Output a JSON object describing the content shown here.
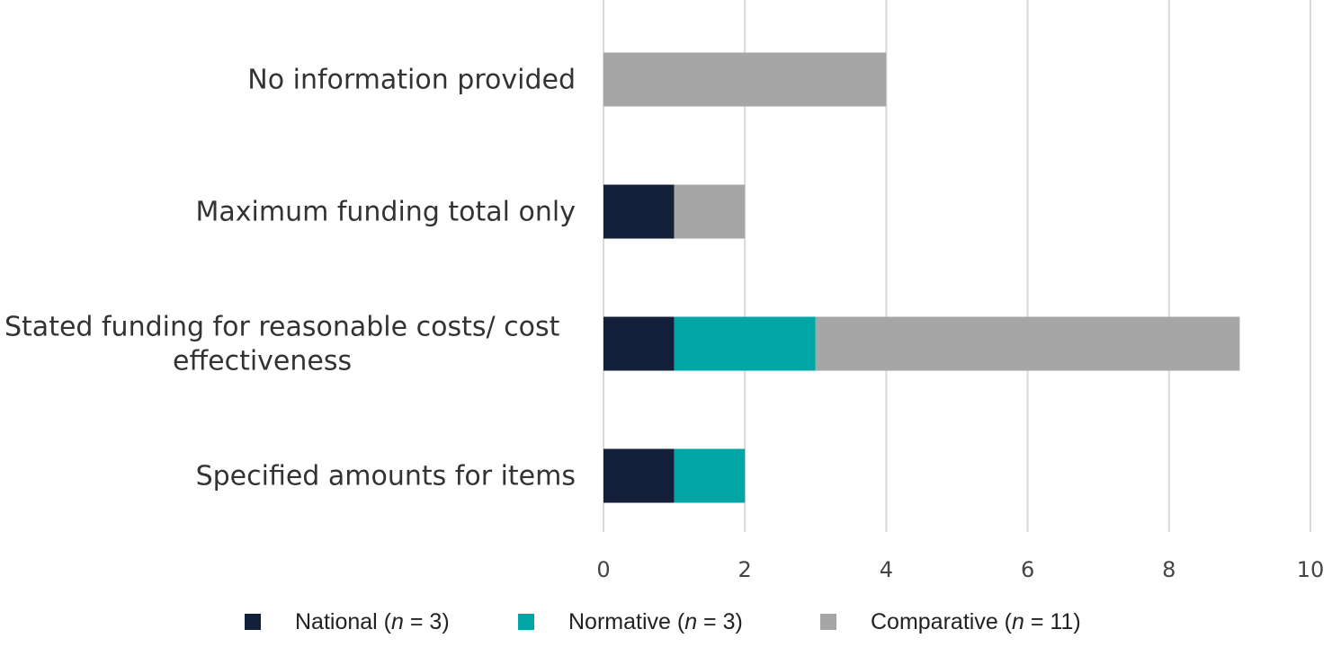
{
  "chart_data": {
    "type": "bar",
    "orientation": "horizontal",
    "stacked": true,
    "title": "",
    "xlabel": "",
    "ylabel": "",
    "xlim": [
      0,
      10
    ],
    "x_ticks": [
      0,
      2,
      4,
      6,
      8,
      10
    ],
    "grid": "vertical",
    "legend_position": "bottom",
    "categories": [
      "No information provided",
      "Maximum funding total only",
      "Stated funding for reasonable costs/ cost effectiveness",
      "Specified amounts for items"
    ],
    "category_label_lines": [
      [
        "No information provided"
      ],
      [
        "Maximum funding total only"
      ],
      [
        "Stated funding for reasonable costs/ cost",
        "effectiveness"
      ],
      [
        "Specified amounts for items"
      ]
    ],
    "series": [
      {
        "name": "National",
        "n": "3",
        "color": "#14203a",
        "values": [
          0,
          1,
          1,
          1
        ]
      },
      {
        "name": "Normative",
        "n": "3",
        "color": "#00a6a6",
        "values": [
          0,
          0,
          2,
          1
        ]
      },
      {
        "name": "Comparative",
        "n": "11",
        "color": "#a6a6a6",
        "values": [
          4,
          1,
          6,
          0
        ]
      }
    ]
  }
}
